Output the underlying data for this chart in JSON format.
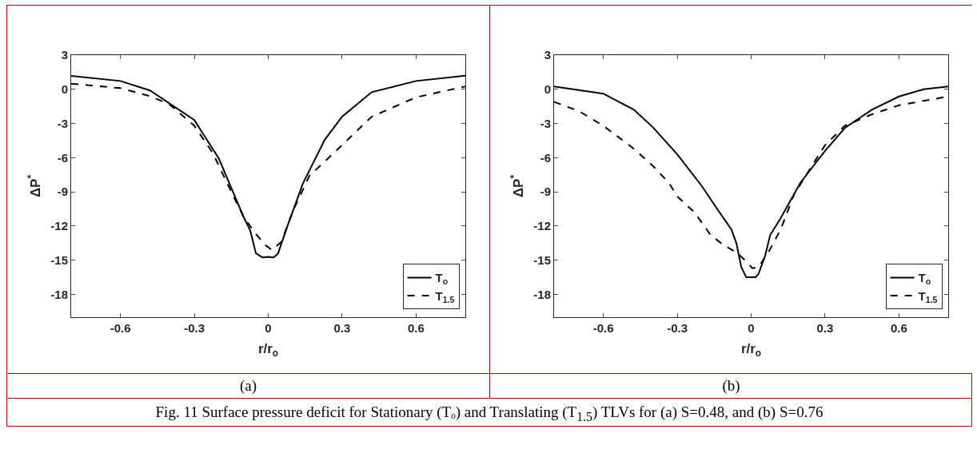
{
  "chart_data": [
    {
      "type": "line",
      "title": "(a)",
      "xlabel": "r/r$_{o}$",
      "ylabel": "ΔP$^{*}$",
      "xlim": [
        -0.8,
        0.8
      ],
      "xticks": [
        -0.6,
        -0.3,
        0,
        0.3,
        0.6
      ],
      "ylim": [
        -20,
        3
      ],
      "yticks": [
        3,
        0,
        -3,
        -6,
        -9,
        -12,
        -15,
        -18
      ],
      "grid": false,
      "legend": "bottom right",
      "marker": "none",
      "annotations": [
        "Fig. 11 Surface pressure deficit for Stationary (Tₒ) and Translating (T$_{1.5}$) TLVs  for (a) S=0.48, and (b) S=0.76"
      ],
      "series": [
        {
          "name": "T$_{o}$",
          "color": "#000000",
          "line_style": "solid",
          "x": [
            -0.8,
            -0.6,
            -0.48,
            -0.3,
            -0.2,
            -0.1,
            -0.073,
            -0.05,
            -0.023,
            0,
            0.022,
            0.04,
            0.078,
            0.14,
            0.23,
            0.3,
            0.42,
            0.6,
            0.8
          ],
          "values": [
            1.17,
            0.73,
            -0.1,
            -2.7,
            -6.1,
            -11.2,
            -12.4,
            -14.4,
            -14.75,
            -14.7,
            -14.75,
            -14.4,
            -12,
            -8.3,
            -4.4,
            -2.4,
            -0.25,
            0.73,
            1.2
          ]
        },
        {
          "name": "T$_{1.5}$",
          "color": "#000000",
          "line_style": "dashed",
          "x": [
            -0.8,
            -0.6,
            -0.48,
            -0.4,
            -0.3,
            -0.225,
            -0.15,
            -0.1,
            -0.05,
            -0.01,
            0.015,
            0.053,
            0.104,
            0.167,
            0.3,
            0.42,
            0.6,
            0.8
          ],
          "values": [
            0.5,
            0.1,
            -0.6,
            -1.34,
            -3.2,
            -5.6,
            -9,
            -11.2,
            -12.7,
            -13.7,
            -14.1,
            -13.4,
            -10.5,
            -7.6,
            -4.9,
            -2.4,
            -0.7,
            0.25
          ]
        }
      ]
    },
    {
      "type": "line",
      "title": "(b)",
      "xlabel": "r/r$_{o}$",
      "ylabel": "ΔP$^{*}$",
      "xlim": [
        -0.8,
        0.8
      ],
      "xticks": [
        -0.6,
        -0.3,
        0,
        0.3,
        0.6
      ],
      "ylim": [
        -20,
        3
      ],
      "yticks": [
        3,
        0,
        -3,
        -6,
        -9,
        -12,
        -15,
        -18
      ],
      "grid": false,
      "legend": "bottom right",
      "marker": "none",
      "series": [
        {
          "name": "T$_{o}$",
          "color": "#000000",
          "line_style": "solid",
          "x": [
            -0.8,
            -0.6,
            -0.477,
            -0.4,
            -0.3,
            -0.2,
            -0.138,
            -0.08,
            -0.06,
            -0.04,
            -0.02,
            0.018,
            0.03,
            0.057,
            0.077,
            0.12,
            0.2,
            0.3,
            0.38,
            0.49,
            0.6,
            0.7,
            0.8
          ],
          "values": [
            0.25,
            -0.38,
            -1.77,
            -3.3,
            -5.7,
            -8.5,
            -10.5,
            -12.3,
            -13.5,
            -15.6,
            -16.5,
            -16.5,
            -16.2,
            -14.6,
            -12.8,
            -11.3,
            -8.2,
            -5.4,
            -3.4,
            -1.8,
            -0.63,
            0,
            0.25
          ]
        },
        {
          "name": "T$_{1.5}$",
          "color": "#000000",
          "line_style": "dashed",
          "x": [
            -0.8,
            -0.7,
            -0.6,
            -0.477,
            -0.4,
            -0.334,
            -0.3,
            -0.23,
            -0.164,
            -0.11,
            -0.06,
            -0.02,
            0.005,
            0.03,
            0.07,
            0.12,
            0.175,
            0.253,
            0.3,
            0.38,
            0.49,
            0.6,
            0.8
          ],
          "values": [
            -1.1,
            -1.9,
            -3.2,
            -5.2,
            -6.7,
            -8.2,
            -9.4,
            -10.8,
            -12.8,
            -13.7,
            -14.3,
            -15.1,
            -15.7,
            -15.6,
            -14.3,
            -12.3,
            -9.2,
            -6.5,
            -4.9,
            -3.2,
            -2.2,
            -1.4,
            -0.63
          ]
        }
      ]
    }
  ]
}
